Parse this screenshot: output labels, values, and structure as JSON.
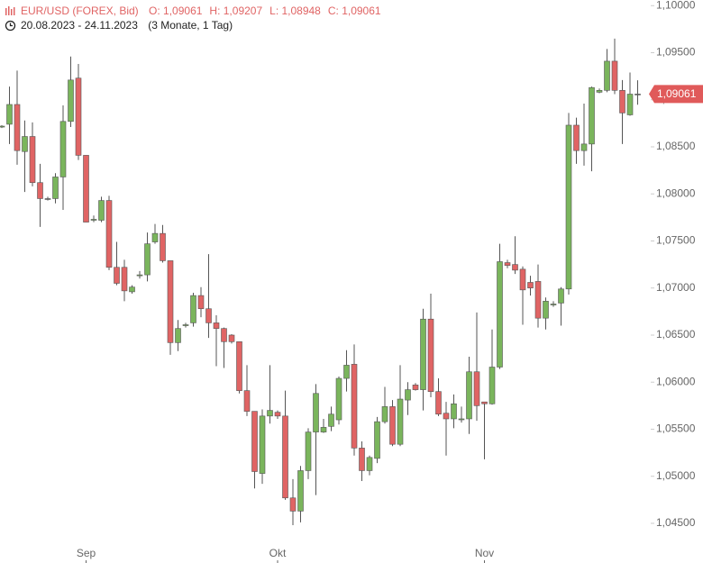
{
  "chart_data": {
    "type": "candlestick",
    "title": "EUR/USD (FOREX, Bid)",
    "ohlc_labels": [
      "O: 1,09061",
      "H: 1,09207",
      "L: 1,08948",
      "C: 1,09061"
    ],
    "subtitle": "20.08.2023 - 24.11.2023",
    "period": "(3 Monate, 1 Tag)",
    "up_color": "#7ab55c",
    "down_color": "#e06464",
    "categories": [
      null,
      null,
      null,
      null,
      null,
      null,
      null,
      null,
      null,
      null,
      null,
      "Sep",
      null,
      null,
      null,
      null,
      null,
      null,
      null,
      null,
      null,
      null,
      null,
      null,
      null,
      null,
      null,
      null,
      null,
      null,
      null,
      null,
      null,
      null,
      null,
      null,
      "Okt",
      null,
      null,
      null,
      null,
      null,
      null,
      null,
      null,
      null,
      null,
      null,
      null,
      null,
      null,
      null,
      null,
      null,
      null,
      null,
      null,
      null,
      null,
      null,
      null,
      null,
      null,
      "Nov",
      null,
      null,
      null,
      null,
      null,
      null,
      null,
      null,
      null,
      null,
      null,
      null,
      null,
      null,
      null,
      null,
      null,
      null,
      null,
      null
    ],
    "series": [
      {
        "name": "EUR/USD",
        "open": [
          1.0871,
          1.0874,
          1.0895,
          1.0845,
          1.0861,
          1.0812,
          1.0795,
          1.0795,
          1.0818,
          1.0877,
          1.0923,
          1.0841,
          1.0772,
          1.0772,
          1.0793,
          1.0722,
          1.0722,
          1.0696,
          1.0713,
          1.0714,
          1.0749,
          1.0758,
          1.0729,
          1.0642,
          1.066,
          1.0663,
          1.0692,
          1.0678,
          1.0663,
          1.0657,
          1.065,
          1.0643,
          1.0591,
          1.0569,
          1.0503,
          1.0564,
          1.0568,
          1.0564,
          1.0477,
          1.0463,
          1.0506,
          1.0547,
          1.0547,
          1.0553,
          1.056,
          1.0604,
          1.0619,
          1.053,
          1.0506,
          1.0519,
          1.0558,
          1.0574,
          1.0534,
          1.0581,
          1.0597,
          1.0592,
          1.0667,
          1.059,
          1.0567,
          1.0561,
          1.056,
          1.0561,
          1.0611,
          1.0579,
          1.0577,
          1.0616,
          1.0727,
          1.0725,
          1.072,
          1.0706,
          1.0707,
          1.0668,
          1.0682,
          1.0684,
          1.0699,
          1.0873,
          1.0846,
          1.0853,
          1.0908,
          1.091,
          1.0941,
          1.091,
          1.0884,
          1.09061
        ],
        "high": [
          1.0873,
          1.0914,
          1.0931,
          1.0878,
          1.0876,
          1.0832,
          1.0797,
          1.0822,
          1.0894,
          1.0946,
          1.0938,
          1.0841,
          1.0777,
          1.0797,
          1.0798,
          1.0749,
          1.073,
          1.0703,
          1.0718,
          1.0759,
          1.0768,
          1.0767,
          1.0729,
          1.0666,
          1.0663,
          1.0695,
          1.0701,
          1.0736,
          1.0671,
          1.0658,
          1.0651,
          1.0643,
          1.0618,
          1.0569,
          1.0571,
          1.0618,
          1.057,
          1.0591,
          1.0497,
          1.0511,
          1.0551,
          1.0598,
          1.0561,
          1.0574,
          1.0606,
          1.0634,
          1.064,
          1.0537,
          1.0522,
          1.0563,
          1.0595,
          1.0581,
          1.0618,
          1.06,
          1.0599,
          1.0678,
          1.0694,
          1.0604,
          1.0579,
          1.0587,
          1.0574,
          1.0627,
          1.0674,
          1.0579,
          1.0656,
          1.0747,
          1.073,
          1.0755,
          1.0723,
          1.0713,
          1.0725,
          1.069,
          1.0686,
          1.0701,
          1.0886,
          1.0881,
          1.0896,
          1.0914,
          1.0912,
          1.0954,
          1.0965,
          1.0921,
          1.0929,
          1.09207
        ],
        "low": [
          1.087,
          1.0853,
          1.0831,
          1.0802,
          1.0808,
          1.0765,
          1.0793,
          1.079,
          1.0783,
          1.0871,
          1.0836,
          1.077,
          1.077,
          1.077,
          1.0719,
          1.0703,
          1.0686,
          1.0694,
          1.071,
          1.0707,
          1.0747,
          1.0727,
          1.0629,
          1.0633,
          1.0658,
          1.0659,
          1.0669,
          1.0647,
          1.0617,
          1.0615,
          1.0641,
          1.0588,
          1.0564,
          1.0487,
          1.0492,
          1.0556,
          1.0561,
          1.0475,
          1.0448,
          1.0451,
          1.0497,
          1.048,
          1.0546,
          1.0548,
          1.0555,
          1.059,
          1.0522,
          1.0495,
          1.0501,
          1.0514,
          1.0556,
          1.0532,
          1.0532,
          1.0565,
          1.0591,
          1.057,
          1.0584,
          1.0564,
          1.0522,
          1.0551,
          1.0557,
          1.0545,
          1.0559,
          1.0518,
          1.0576,
          1.0614,
          1.0721,
          1.0715,
          1.0661,
          1.0692,
          1.0658,
          1.0656,
          1.068,
          1.066,
          1.0693,
          1.0832,
          1.083,
          1.0824,
          1.0907,
          1.0908,
          1.0906,
          1.0853,
          1.0883,
          1.08948
        ],
        "close": [
          1.0872,
          1.0895,
          1.0846,
          1.0861,
          1.0812,
          1.0795,
          1.0795,
          1.0818,
          1.0877,
          1.0921,
          1.0841,
          1.077,
          1.0773,
          1.0793,
          1.0722,
          1.0705,
          1.0697,
          1.0701,
          1.0714,
          1.0747,
          1.0758,
          1.0729,
          1.0642,
          1.0657,
          1.0661,
          1.0692,
          1.0678,
          1.0663,
          1.0657,
          1.0643,
          1.0643,
          1.0591,
          1.0569,
          1.0505,
          1.0564,
          1.057,
          1.0564,
          1.0477,
          1.0463,
          1.0506,
          1.0547,
          1.0588,
          1.0552,
          1.0566,
          1.0604,
          1.0618,
          1.053,
          1.0506,
          1.052,
          1.0558,
          1.0574,
          1.0534,
          1.0582,
          1.0592,
          1.0592,
          1.0667,
          1.059,
          1.0566,
          1.0561,
          1.0577,
          1.0561,
          1.0611,
          1.0575,
          1.0577,
          1.0616,
          1.0728,
          1.0724,
          1.0719,
          1.0698,
          1.07,
          1.0668,
          1.0686,
          1.0683,
          1.0699,
          1.0873,
          1.0846,
          1.0853,
          1.0913,
          1.091,
          1.0941,
          1.091,
          1.0886,
          1.0906,
          1.09061
        ]
      }
    ],
    "current_price": {
      "value": 1.09061,
      "label": "1,09061"
    },
    "ylim": [
      1.0427,
      1.1006
    ],
    "yticks": [
      {
        "value": 1.1,
        "label": "1,10000"
      },
      {
        "value": 1.095,
        "label": "1,09500"
      },
      {
        "value": 1.09,
        "label": "1,09000"
      },
      {
        "value": 1.085,
        "label": "1,08500"
      },
      {
        "value": 1.08,
        "label": "1,08000"
      },
      {
        "value": 1.075,
        "label": "1,07500"
      },
      {
        "value": 1.07,
        "label": "1,07000"
      },
      {
        "value": 1.065,
        "label": "1,06500"
      },
      {
        "value": 1.06,
        "label": "1,06000"
      },
      {
        "value": 1.055,
        "label": "1,05500"
      },
      {
        "value": 1.05,
        "label": "1,05000"
      },
      {
        "value": 1.045,
        "label": "1,04500"
      }
    ]
  }
}
